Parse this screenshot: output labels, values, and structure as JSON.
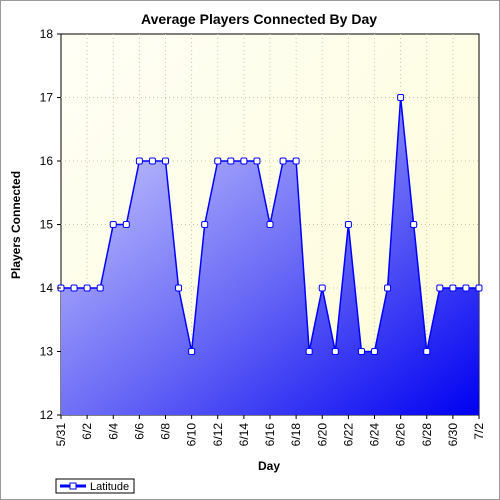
{
  "chart_data": {
    "type": "area",
    "title": "Average Players Connected By Day",
    "xlabel": "Day",
    "ylabel": "Players Connected",
    "ylim": [
      12,
      18
    ],
    "yticks": [
      12,
      13,
      14,
      15,
      16,
      17,
      18
    ],
    "x_tick_labels": [
      "5/31",
      "6/2",
      "6/4",
      "6/6",
      "6/8",
      "6/10",
      "6/12",
      "6/14",
      "6/16",
      "6/18",
      "6/20",
      "6/22",
      "6/24",
      "6/26",
      "6/28",
      "6/30",
      "7/2"
    ],
    "grid": true,
    "legend_position": "bottom-left",
    "series": [
      {
        "name": "Latitude",
        "color": "#0000ff",
        "x": [
          "5/31",
          "6/1",
          "6/2",
          "6/3",
          "6/4",
          "6/5",
          "6/6",
          "6/7",
          "6/8",
          "6/9",
          "6/10",
          "6/11",
          "6/12",
          "6/13",
          "6/14",
          "6/15",
          "6/16",
          "6/17",
          "6/18",
          "6/19",
          "6/20",
          "6/21",
          "6/22",
          "6/23",
          "6/24",
          "6/25",
          "6/26",
          "6/27",
          "6/28",
          "6/29",
          "6/30",
          "7/1",
          "7/2"
        ],
        "values": [
          14,
          14,
          14,
          14,
          15,
          15,
          16,
          16,
          16,
          14,
          13,
          15,
          16,
          16,
          16,
          16,
          15,
          16,
          16,
          13,
          14,
          13,
          15,
          13,
          13,
          14,
          17,
          15,
          13,
          14,
          14,
          14,
          14
        ]
      }
    ]
  }
}
